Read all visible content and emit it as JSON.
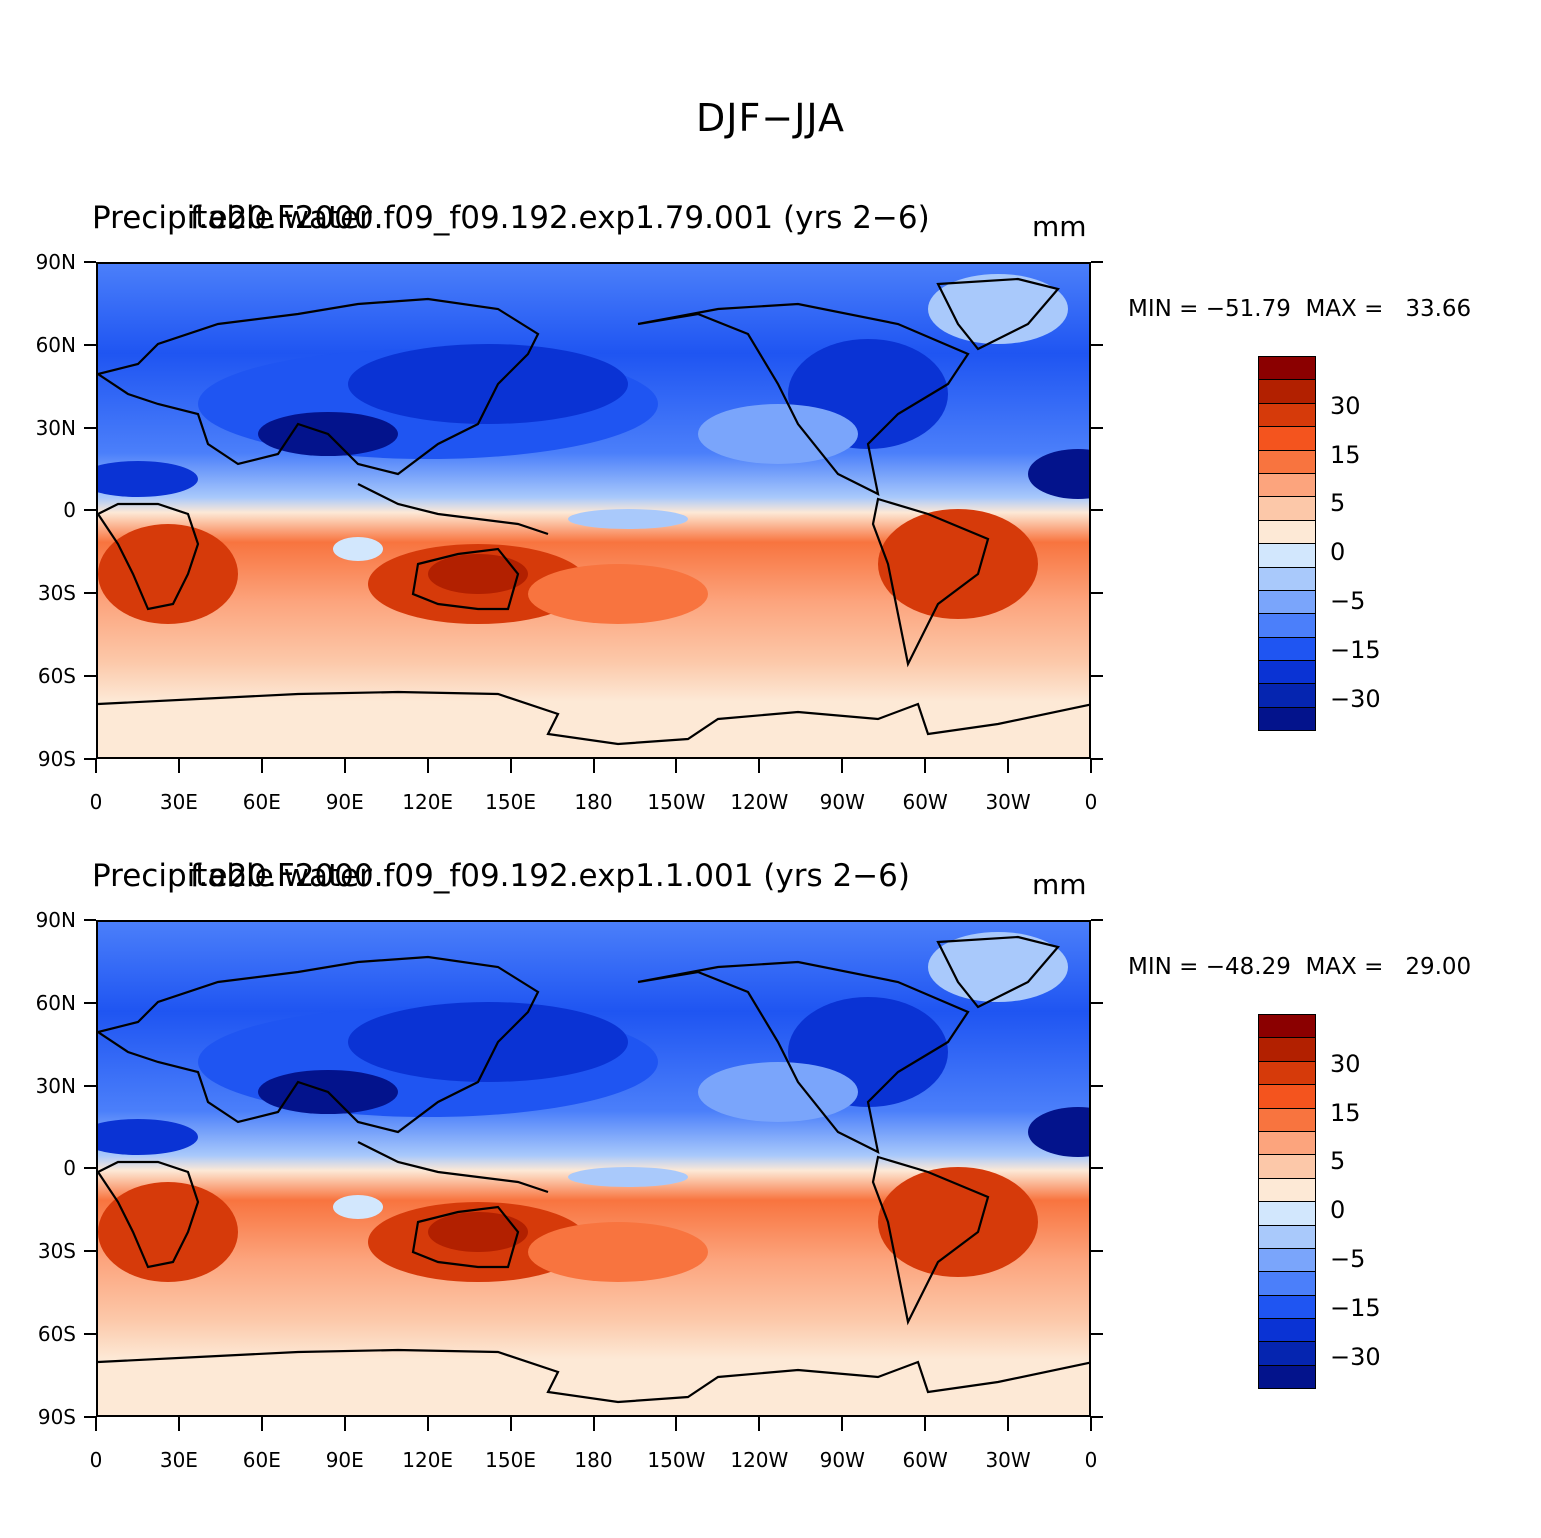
{
  "main_title": "DJF−JJA",
  "panels": [
    {
      "left_title": "Precipitable water",
      "center_title": "f.e20.F2000.f09_f09.192.exp1.79.001 (yrs 2−6)",
      "units": "mm",
      "minmax": "MIN = −51.79  MAX =   33.66"
    },
    {
      "left_title": "Precipitable water",
      "center_title": "f.e20.F2000.f09_f09.192.exp1.1.001 (yrs 2−6)",
      "units": "mm",
      "minmax": "MIN = −48.29  MAX =   29.00"
    }
  ],
  "lat_labels": [
    "90N",
    "60N",
    "30N",
    "0",
    "30S",
    "60S",
    "90S"
  ],
  "lon_labels": [
    "0",
    "30E",
    "60E",
    "90E",
    "120E",
    "150E",
    "180",
    "150W",
    "120W",
    "90W",
    "60W",
    "30W",
    "0"
  ],
  "colorbar_labels": [
    "30",
    "15",
    "5",
    "0",
    "−5",
    "−15",
    "−30"
  ],
  "colorbar_colors": [
    "#8b0000",
    "#b22000",
    "#d63a0a",
    "#f4541e",
    "#f8743f",
    "#fca47d",
    "#fcc8a9",
    "#fde9d6",
    "#d2e7fd",
    "#a9c9fb",
    "#7aa5fb",
    "#4b7ffa",
    "#1f55f2",
    "#0a33d4",
    "#0525b0",
    "#03138c"
  ]
}
